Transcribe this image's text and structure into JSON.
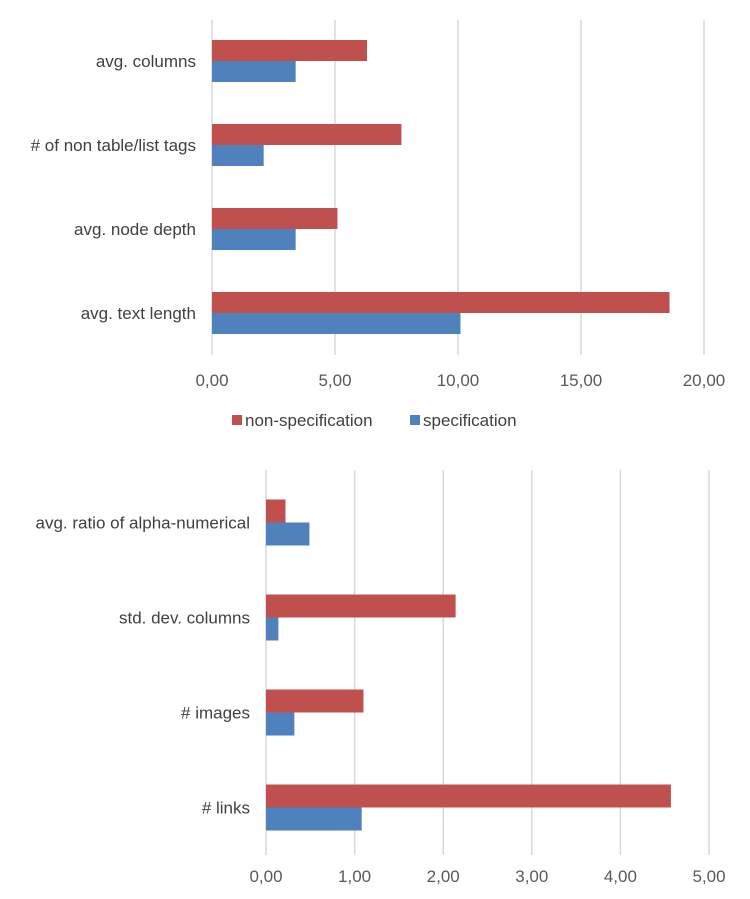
{
  "chart_data": [
    {
      "type": "bar",
      "orientation": "horizontal",
      "categories": [
        "avg. text length",
        "avg. node depth",
        "# of non table/list tags",
        "avg. columns"
      ],
      "series": [
        {
          "name": "specification",
          "color": "#4F81BD",
          "values": [
            10.1,
            3.4,
            2.1,
            3.4
          ]
        },
        {
          "name": "non-specification",
          "color": "#C0504D",
          "values": [
            18.6,
            5.1,
            7.7,
            6.3
          ]
        }
      ],
      "xlim": [
        0,
        20
      ],
      "xticks": [
        "0,00",
        "5,00",
        "10,00",
        "15,00",
        "20,00"
      ],
      "grid": true,
      "legend": "bottom"
    },
    {
      "type": "bar",
      "orientation": "horizontal",
      "categories": [
        "# links",
        "# images",
        "std. dev. columns",
        "avg. ratio of alpha-numerical"
      ],
      "series": [
        {
          "name": "specification",
          "color": "#4F81BD",
          "values": [
            1.08,
            0.32,
            0.14,
            0.49
          ]
        },
        {
          "name": "non-specification",
          "color": "#C0504D",
          "values": [
            4.57,
            1.1,
            2.14,
            0.22
          ]
        }
      ],
      "xlim": [
        0,
        5
      ],
      "xticks": [
        "0,00",
        "1,00",
        "2,00",
        "3,00",
        "4,00",
        "5,00"
      ],
      "grid": true,
      "legend": "none"
    }
  ],
  "legend": {
    "items": [
      {
        "label": "non-specification",
        "color": "#C0504D"
      },
      {
        "label": "specification",
        "color": "#4F81BD"
      }
    ]
  }
}
